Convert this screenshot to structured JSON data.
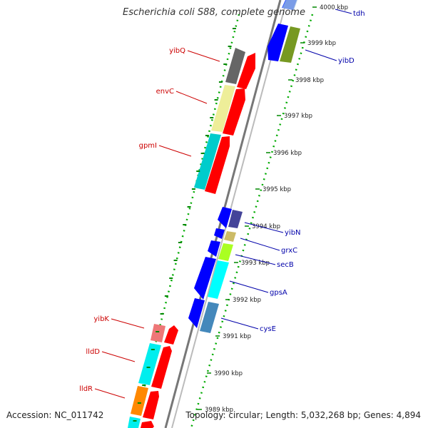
{
  "title_organism": "Escherichia coli S88",
  "title_suffix": ", complete genome",
  "footer": {
    "accession": "Accession: NC_011742",
    "summary": "Topology: circular; Length: 5,032,268 bp; Genes: 4,894"
  },
  "ticks": [
    {
      "label": "4000 kbp"
    },
    {
      "label": "3999 kbp"
    },
    {
      "label": "3998 kbp"
    },
    {
      "label": "3997 kbp"
    },
    {
      "label": "3996 kbp"
    },
    {
      "label": "3995 kbp"
    },
    {
      "label": "3994 kbp"
    },
    {
      "label": "3993 kbp"
    },
    {
      "label": "3992 kbp"
    },
    {
      "label": "3991 kbp"
    },
    {
      "label": "3990 kbp"
    },
    {
      "label": "3989 kbp"
    }
  ],
  "genes_right": [
    {
      "name": "tdh",
      "color": "#0000aa"
    },
    {
      "name": "yibD",
      "color": "#0000aa"
    },
    {
      "name": "yibN",
      "color": "#0000aa"
    },
    {
      "name": "grxC",
      "color": "#0000aa"
    },
    {
      "name": "secB",
      "color": "#0000aa"
    },
    {
      "name": "gpsA",
      "color": "#0000aa"
    },
    {
      "name": "cysE",
      "color": "#0000aa"
    }
  ],
  "genes_left": [
    {
      "name": "yibQ",
      "color": "#cc0000"
    },
    {
      "name": "envC",
      "color": "#cc0000"
    },
    {
      "name": "gpmI",
      "color": "#cc0000"
    },
    {
      "name": "yibK",
      "color": "#cc0000"
    },
    {
      "name": "lldD",
      "color": "#cc0000"
    },
    {
      "name": "lldR",
      "color": "#cc0000"
    }
  ],
  "colors": {
    "forward_strand": "#ff0000",
    "reverse_strand": "#0000ff",
    "backbone": "#888888",
    "tick_dots": "#008800"
  }
}
